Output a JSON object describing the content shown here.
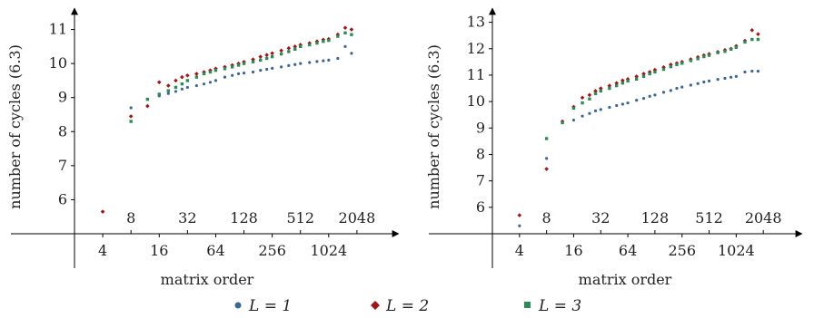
{
  "chart_data": [
    {
      "type": "scatter",
      "xscale": "log2",
      "xlim": [
        2,
        4096
      ],
      "ylim": [
        5.0,
        11.6
      ],
      "xlabel": "matrix order",
      "ylabel": "number of cycles (6.3)",
      "xticks_below": [
        {
          "value": 4,
          "label": "4"
        },
        {
          "value": 16,
          "label": "16"
        },
        {
          "value": 64,
          "label": "64"
        },
        {
          "value": 256,
          "label": "256"
        },
        {
          "value": 1024,
          "label": "1024"
        }
      ],
      "xticks_above": [
        {
          "value": 8,
          "label": "8"
        },
        {
          "value": 32,
          "label": "32"
        },
        {
          "value": 128,
          "label": "128"
        },
        {
          "value": 512,
          "label": "512"
        },
        {
          "value": 2048,
          "label": "2048"
        }
      ],
      "yticks": [
        {
          "value": 6,
          "label": "6"
        },
        {
          "value": 7,
          "label": "7"
        },
        {
          "value": 8,
          "label": "8"
        },
        {
          "value": 9,
          "label": "9"
        },
        {
          "value": 10,
          "label": "10"
        },
        {
          "value": 11,
          "label": "11"
        }
      ],
      "series": [
        {
          "name": "L = 1",
          "x": [
            4,
            8,
            12,
            16,
            20,
            24,
            28,
            32,
            40,
            48,
            56,
            64,
            80,
            96,
            112,
            128,
            160,
            192,
            224,
            256,
            320,
            384,
            448,
            512,
            640,
            768,
            896,
            1024,
            1280,
            1536,
            1792
          ],
          "y": [
            5.65,
            8.7,
            8.95,
            9.05,
            9.12,
            9.18,
            9.25,
            9.3,
            9.35,
            9.4,
            9.45,
            9.5,
            9.6,
            9.65,
            9.7,
            9.72,
            9.75,
            9.8,
            9.83,
            9.86,
            9.9,
            9.94,
            9.97,
            10.0,
            10.03,
            10.06,
            10.08,
            10.1,
            10.15,
            10.5,
            10.3
          ]
        },
        {
          "name": "L = 2",
          "x": [
            4,
            8,
            12,
            16,
            20,
            24,
            28,
            32,
            40,
            48,
            56,
            64,
            80,
            96,
            112,
            128,
            160,
            192,
            224,
            256,
            320,
            384,
            448,
            512,
            640,
            768,
            896,
            1024,
            1280,
            1536,
            1792
          ],
          "y": [
            5.65,
            8.45,
            8.75,
            9.45,
            9.35,
            9.5,
            9.6,
            9.65,
            9.7,
            9.75,
            9.8,
            9.85,
            9.9,
            9.95,
            10.0,
            10.05,
            10.12,
            10.2,
            10.25,
            10.3,
            10.38,
            10.45,
            10.5,
            10.55,
            10.6,
            10.65,
            10.7,
            10.72,
            10.85,
            11.05,
            11.0
          ]
        },
        {
          "name": "L = 3",
          "x": [
            8,
            12,
            16,
            20,
            24,
            28,
            32,
            40,
            48,
            56,
            64,
            80,
            96,
            112,
            128,
            160,
            192,
            224,
            256,
            320,
            384,
            448,
            512,
            640,
            768,
            896,
            1024,
            1280,
            1536,
            1792
          ],
          "y": [
            8.3,
            8.95,
            9.1,
            9.2,
            9.3,
            9.4,
            9.5,
            9.6,
            9.7,
            9.75,
            9.8,
            9.85,
            9.9,
            9.95,
            10.0,
            10.05,
            10.1,
            10.15,
            10.2,
            10.28,
            10.35,
            10.42,
            10.5,
            10.55,
            10.6,
            10.65,
            10.68,
            10.8,
            10.9,
            10.85
          ]
        }
      ]
    },
    {
      "type": "scatter",
      "xscale": "log2",
      "xlim": [
        2,
        4096
      ],
      "ylim": [
        5.0,
        13.5
      ],
      "xlabel": "matrix order",
      "ylabel": "number of cycles (6.3)",
      "xticks_below": [
        {
          "value": 4,
          "label": "4"
        },
        {
          "value": 16,
          "label": "16"
        },
        {
          "value": 64,
          "label": "64"
        },
        {
          "value": 256,
          "label": "256"
        },
        {
          "value": 1024,
          "label": "1024"
        }
      ],
      "xticks_above": [
        {
          "value": 8,
          "label": "8"
        },
        {
          "value": 32,
          "label": "32"
        },
        {
          "value": 128,
          "label": "128"
        },
        {
          "value": 512,
          "label": "512"
        },
        {
          "value": 2048,
          "label": "2048"
        }
      ],
      "yticks": [
        {
          "value": 6,
          "label": "6"
        },
        {
          "value": 7,
          "label": "7"
        },
        {
          "value": 8,
          "label": "8"
        },
        {
          "value": 9,
          "label": "9"
        },
        {
          "value": 10,
          "label": "10"
        },
        {
          "value": 11,
          "label": "11"
        },
        {
          "value": 12,
          "label": "12"
        },
        {
          "value": 13,
          "label": "13"
        }
      ],
      "series": [
        {
          "name": "L = 1",
          "x": [
            4,
            8,
            12,
            16,
            20,
            24,
            28,
            32,
            40,
            48,
            56,
            64,
            80,
            96,
            112,
            128,
            160,
            192,
            224,
            256,
            320,
            384,
            448,
            512,
            640,
            768,
            896,
            1024,
            1280,
            1536,
            1792
          ],
          "y": [
            5.3,
            7.85,
            9.2,
            9.3,
            9.45,
            9.55,
            9.65,
            9.7,
            9.78,
            9.85,
            9.9,
            9.95,
            10.05,
            10.12,
            10.2,
            10.25,
            10.35,
            10.42,
            10.5,
            10.55,
            10.62,
            10.68,
            10.74,
            10.78,
            10.84,
            10.88,
            10.92,
            10.95,
            11.12,
            11.15,
            11.15
          ]
        },
        {
          "name": "L = 2",
          "x": [
            4,
            8,
            12,
            16,
            20,
            24,
            28,
            32,
            40,
            48,
            56,
            64,
            80,
            96,
            112,
            128,
            160,
            192,
            224,
            256,
            320,
            384,
            448,
            512,
            640,
            768,
            896,
            1024,
            1280,
            1536,
            1792
          ],
          "y": [
            5.7,
            7.45,
            9.25,
            9.8,
            10.15,
            10.25,
            10.4,
            10.5,
            10.6,
            10.7,
            10.8,
            10.85,
            10.95,
            11.05,
            11.12,
            11.2,
            11.3,
            11.4,
            11.45,
            11.5,
            11.6,
            11.68,
            11.75,
            11.8,
            11.88,
            11.95,
            12.0,
            12.1,
            12.3,
            12.7,
            12.55
          ]
        },
        {
          "name": "L = 3",
          "x": [
            8,
            12,
            16,
            20,
            24,
            28,
            32,
            40,
            48,
            56,
            64,
            80,
            96,
            112,
            128,
            160,
            192,
            224,
            256,
            320,
            384,
            448,
            512,
            640,
            768,
            896,
            1024,
            1280,
            1536,
            1792
          ],
          "y": [
            8.6,
            9.2,
            9.75,
            9.95,
            10.1,
            10.3,
            10.4,
            10.5,
            10.6,
            10.7,
            10.78,
            10.85,
            10.95,
            11.05,
            11.12,
            11.22,
            11.32,
            11.4,
            11.45,
            11.55,
            11.62,
            11.7,
            11.75,
            11.85,
            11.9,
            11.98,
            12.05,
            12.25,
            12.35,
            12.35
          ]
        }
      ]
    }
  ],
  "legend": [
    {
      "label": "L = 1",
      "marker": "circle",
      "color": "#3a6690"
    },
    {
      "label": "L = 2",
      "marker": "diamond",
      "color": "#a31515"
    },
    {
      "label": "L = 3",
      "marker": "square",
      "color": "#2e8b57"
    }
  ],
  "colors": {
    "axis": "#000000",
    "text": "#222222"
  }
}
